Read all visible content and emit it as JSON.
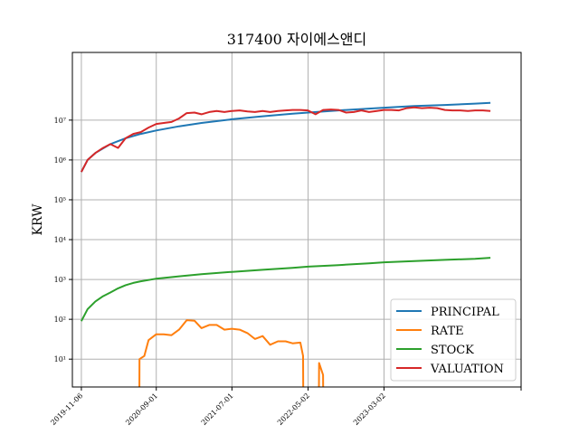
{
  "chart_data": {
    "type": "line",
    "title": "317400 자이에스앤디",
    "xlabel": "",
    "ylabel": "KRW",
    "yscale": "log",
    "ylim": [
      2,
      500000000
    ],
    "xlim": [
      "2019-10-01",
      "2024-09-01"
    ],
    "xtick_labels": [
      "2019-11-06",
      "2020-09-01",
      "2021-07-01",
      "2022-05-02",
      "2023-03-02"
    ],
    "ytick_labels": [
      {
        "exp": 1,
        "text": "10¹"
      },
      {
        "exp": 2,
        "text": "10²"
      },
      {
        "exp": 3,
        "text": "10³"
      },
      {
        "exp": 4,
        "text": "10⁴"
      },
      {
        "exp": 5,
        "text": "10⁵"
      },
      {
        "exp": 6,
        "text": "10⁶"
      },
      {
        "exp": 7,
        "text": "10⁷"
      }
    ],
    "grid": true,
    "legend_position": "lower-right",
    "colors": {
      "PRINCIPAL": "#1f77b4",
      "RATE": "#ff7f0e",
      "STOCK": "#2ca02c",
      "VALUATION": "#d62728"
    },
    "series": [
      {
        "name": "PRINCIPAL",
        "x": [
          "2019-11-06",
          "2019-12-01",
          "2020-01-01",
          "2020-03-01",
          "2020-05-01",
          "2020-07-01",
          "2020-09-01",
          "2020-12-01",
          "2021-03-01",
          "2021-07-01",
          "2021-11-01",
          "2022-03-01",
          "2022-05-02",
          "2022-09-01",
          "2023-01-01",
          "2023-03-02",
          "2023-07-01",
          "2023-11-01",
          "2024-03-01",
          "2024-05-01"
        ],
        "values": [
          500000,
          1000000,
          1500000,
          2500000,
          3500000,
          4500000,
          5500000,
          7000000,
          8500000,
          10500000,
          12500000,
          14500000,
          15500000,
          17500000,
          19500000,
          20500000,
          22500000,
          24000000,
          26000000,
          27000000
        ]
      },
      {
        "name": "RATE",
        "x": [
          "2020-06-25",
          "2020-06-26",
          "2020-07-15",
          "2020-08-01",
          "2020-09-01",
          "2020-10-01",
          "2020-11-01",
          "2020-12-01",
          "2021-01-01",
          "2021-02-01",
          "2021-03-01",
          "2021-04-01",
          "2021-05-01",
          "2021-06-01",
          "2021-07-01",
          "2021-08-01",
          "2021-09-01",
          "2021-10-01",
          "2021-11-01",
          "2021-12-01",
          "2022-01-01",
          "2022-02-01",
          "2022-03-01",
          "2022-04-01",
          "2022-04-12",
          "2022-04-13",
          "2022-06-14",
          "2022-06-15",
          "2022-07-01",
          "2022-07-02"
        ],
        "values": [
          0.5,
          10,
          12,
          30,
          42,
          42,
          40,
          55,
          95,
          92,
          60,
          72,
          72,
          55,
          58,
          55,
          45,
          32,
          38,
          23,
          28,
          28,
          25,
          26,
          12,
          0.5,
          0.5,
          8,
          4,
          0.5
        ]
      },
      {
        "name": "STOCK",
        "x": [
          "2019-11-06",
          "2019-12-01",
          "2020-01-01",
          "2020-02-01",
          "2020-03-01",
          "2020-04-01",
          "2020-05-01",
          "2020-06-01",
          "2020-07-01",
          "2020-08-01",
          "2020-09-01",
          "2020-12-01",
          "2021-03-01",
          "2021-07-01",
          "2021-11-01",
          "2022-03-01",
          "2022-05-02",
          "2022-09-01",
          "2023-01-01",
          "2023-03-02",
          "2023-07-01",
          "2023-11-01",
          "2024-03-01",
          "2024-05-01"
        ],
        "values": [
          90,
          180,
          280,
          380,
          470,
          600,
          720,
          820,
          900,
          970,
          1050,
          1200,
          1350,
          1550,
          1750,
          1950,
          2100,
          2300,
          2550,
          2700,
          2900,
          3100,
          3300,
          3500
        ]
      },
      {
        "name": "VALUATION",
        "x": [
          "2019-11-06",
          "2019-12-01",
          "2020-01-01",
          "2020-02-01",
          "2020-03-01",
          "2020-04-01",
          "2020-05-01",
          "2020-06-01",
          "2020-07-01",
          "2020-08-01",
          "2020-09-01",
          "2020-10-01",
          "2020-11-01",
          "2020-12-01",
          "2021-01-01",
          "2021-02-01",
          "2021-03-01",
          "2021-04-01",
          "2021-05-01",
          "2021-06-01",
          "2021-07-01",
          "2021-08-01",
          "2021-09-01",
          "2021-10-01",
          "2021-11-01",
          "2021-12-01",
          "2022-01-01",
          "2022-02-01",
          "2022-03-01",
          "2022-04-01",
          "2022-05-01",
          "2022-06-01",
          "2022-07-01",
          "2022-08-01",
          "2022-09-01",
          "2022-10-01",
          "2022-11-01",
          "2022-12-01",
          "2023-01-01",
          "2023-02-01",
          "2023-03-01",
          "2023-04-01",
          "2023-05-01",
          "2023-06-01",
          "2023-07-01",
          "2023-08-01",
          "2023-09-01",
          "2023-10-01",
          "2023-11-01",
          "2023-12-01",
          "2024-01-01",
          "2024-02-01",
          "2024-03-01",
          "2024-04-01",
          "2024-05-01"
        ],
        "values": [
          500000,
          1000000,
          1500000,
          2000000,
          2500000,
          2000000,
          3500000,
          4500000,
          5000000,
          6500000,
          8000000,
          8500000,
          9000000,
          11000000,
          15000000,
          15500000,
          14000000,
          16000000,
          17000000,
          16000000,
          17000000,
          17500000,
          16500000,
          16000000,
          17000000,
          16000000,
          17000000,
          17500000,
          18000000,
          18000000,
          17500000,
          14000000,
          18000000,
          18500000,
          18000000,
          15500000,
          16000000,
          17500000,
          16000000,
          17000000,
          18000000,
          18000000,
          17500000,
          20000000,
          21000000,
          20000000,
          20500000,
          20000000,
          18000000,
          17500000,
          17500000,
          17000000,
          17500000,
          17500000,
          17000000
        ]
      }
    ]
  }
}
